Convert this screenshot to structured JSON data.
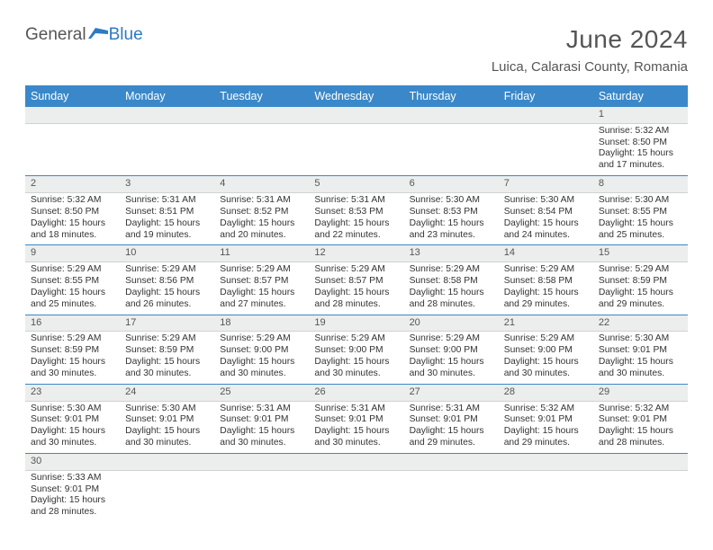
{
  "logo": {
    "text1": "General",
    "text2": "Blue"
  },
  "title": "June 2024",
  "location": "Luica, Calarasi County, Romania",
  "colors": {
    "header_bg": "#3a88c9",
    "header_fg": "#ffffff",
    "daynum_bg": "#eceded",
    "border": "#3a88c9",
    "logo_blue": "#2c7bc4"
  },
  "weekdays": [
    "Sunday",
    "Monday",
    "Tuesday",
    "Wednesday",
    "Thursday",
    "Friday",
    "Saturday"
  ],
  "weeks": [
    {
      "nums": [
        "",
        "",
        "",
        "",
        "",
        "",
        "1"
      ],
      "cells": [
        {},
        {},
        {},
        {},
        {},
        {},
        {
          "sunrise": "Sunrise: 5:32 AM",
          "sunset": "Sunset: 8:50 PM",
          "daylight1": "Daylight: 15 hours",
          "daylight2": "and 17 minutes."
        }
      ]
    },
    {
      "nums": [
        "2",
        "3",
        "4",
        "5",
        "6",
        "7",
        "8"
      ],
      "cells": [
        {
          "sunrise": "Sunrise: 5:32 AM",
          "sunset": "Sunset: 8:50 PM",
          "daylight1": "Daylight: 15 hours",
          "daylight2": "and 18 minutes."
        },
        {
          "sunrise": "Sunrise: 5:31 AM",
          "sunset": "Sunset: 8:51 PM",
          "daylight1": "Daylight: 15 hours",
          "daylight2": "and 19 minutes."
        },
        {
          "sunrise": "Sunrise: 5:31 AM",
          "sunset": "Sunset: 8:52 PM",
          "daylight1": "Daylight: 15 hours",
          "daylight2": "and 20 minutes."
        },
        {
          "sunrise": "Sunrise: 5:31 AM",
          "sunset": "Sunset: 8:53 PM",
          "daylight1": "Daylight: 15 hours",
          "daylight2": "and 22 minutes."
        },
        {
          "sunrise": "Sunrise: 5:30 AM",
          "sunset": "Sunset: 8:53 PM",
          "daylight1": "Daylight: 15 hours",
          "daylight2": "and 23 minutes."
        },
        {
          "sunrise": "Sunrise: 5:30 AM",
          "sunset": "Sunset: 8:54 PM",
          "daylight1": "Daylight: 15 hours",
          "daylight2": "and 24 minutes."
        },
        {
          "sunrise": "Sunrise: 5:30 AM",
          "sunset": "Sunset: 8:55 PM",
          "daylight1": "Daylight: 15 hours",
          "daylight2": "and 25 minutes."
        }
      ]
    },
    {
      "nums": [
        "9",
        "10",
        "11",
        "12",
        "13",
        "14",
        "15"
      ],
      "cells": [
        {
          "sunrise": "Sunrise: 5:29 AM",
          "sunset": "Sunset: 8:55 PM",
          "daylight1": "Daylight: 15 hours",
          "daylight2": "and 25 minutes."
        },
        {
          "sunrise": "Sunrise: 5:29 AM",
          "sunset": "Sunset: 8:56 PM",
          "daylight1": "Daylight: 15 hours",
          "daylight2": "and 26 minutes."
        },
        {
          "sunrise": "Sunrise: 5:29 AM",
          "sunset": "Sunset: 8:57 PM",
          "daylight1": "Daylight: 15 hours",
          "daylight2": "and 27 minutes."
        },
        {
          "sunrise": "Sunrise: 5:29 AM",
          "sunset": "Sunset: 8:57 PM",
          "daylight1": "Daylight: 15 hours",
          "daylight2": "and 28 minutes."
        },
        {
          "sunrise": "Sunrise: 5:29 AM",
          "sunset": "Sunset: 8:58 PM",
          "daylight1": "Daylight: 15 hours",
          "daylight2": "and 28 minutes."
        },
        {
          "sunrise": "Sunrise: 5:29 AM",
          "sunset": "Sunset: 8:58 PM",
          "daylight1": "Daylight: 15 hours",
          "daylight2": "and 29 minutes."
        },
        {
          "sunrise": "Sunrise: 5:29 AM",
          "sunset": "Sunset: 8:59 PM",
          "daylight1": "Daylight: 15 hours",
          "daylight2": "and 29 minutes."
        }
      ]
    },
    {
      "nums": [
        "16",
        "17",
        "18",
        "19",
        "20",
        "21",
        "22"
      ],
      "cells": [
        {
          "sunrise": "Sunrise: 5:29 AM",
          "sunset": "Sunset: 8:59 PM",
          "daylight1": "Daylight: 15 hours",
          "daylight2": "and 30 minutes."
        },
        {
          "sunrise": "Sunrise: 5:29 AM",
          "sunset": "Sunset: 8:59 PM",
          "daylight1": "Daylight: 15 hours",
          "daylight2": "and 30 minutes."
        },
        {
          "sunrise": "Sunrise: 5:29 AM",
          "sunset": "Sunset: 9:00 PM",
          "daylight1": "Daylight: 15 hours",
          "daylight2": "and 30 minutes."
        },
        {
          "sunrise": "Sunrise: 5:29 AM",
          "sunset": "Sunset: 9:00 PM",
          "daylight1": "Daylight: 15 hours",
          "daylight2": "and 30 minutes."
        },
        {
          "sunrise": "Sunrise: 5:29 AM",
          "sunset": "Sunset: 9:00 PM",
          "daylight1": "Daylight: 15 hours",
          "daylight2": "and 30 minutes."
        },
        {
          "sunrise": "Sunrise: 5:29 AM",
          "sunset": "Sunset: 9:00 PM",
          "daylight1": "Daylight: 15 hours",
          "daylight2": "and 30 minutes."
        },
        {
          "sunrise": "Sunrise: 5:30 AM",
          "sunset": "Sunset: 9:01 PM",
          "daylight1": "Daylight: 15 hours",
          "daylight2": "and 30 minutes."
        }
      ]
    },
    {
      "nums": [
        "23",
        "24",
        "25",
        "26",
        "27",
        "28",
        "29"
      ],
      "cells": [
        {
          "sunrise": "Sunrise: 5:30 AM",
          "sunset": "Sunset: 9:01 PM",
          "daylight1": "Daylight: 15 hours",
          "daylight2": "and 30 minutes."
        },
        {
          "sunrise": "Sunrise: 5:30 AM",
          "sunset": "Sunset: 9:01 PM",
          "daylight1": "Daylight: 15 hours",
          "daylight2": "and 30 minutes."
        },
        {
          "sunrise": "Sunrise: 5:31 AM",
          "sunset": "Sunset: 9:01 PM",
          "daylight1": "Daylight: 15 hours",
          "daylight2": "and 30 minutes."
        },
        {
          "sunrise": "Sunrise: 5:31 AM",
          "sunset": "Sunset: 9:01 PM",
          "daylight1": "Daylight: 15 hours",
          "daylight2": "and 30 minutes."
        },
        {
          "sunrise": "Sunrise: 5:31 AM",
          "sunset": "Sunset: 9:01 PM",
          "daylight1": "Daylight: 15 hours",
          "daylight2": "and 29 minutes."
        },
        {
          "sunrise": "Sunrise: 5:32 AM",
          "sunset": "Sunset: 9:01 PM",
          "daylight1": "Daylight: 15 hours",
          "daylight2": "and 29 minutes."
        },
        {
          "sunrise": "Sunrise: 5:32 AM",
          "sunset": "Sunset: 9:01 PM",
          "daylight1": "Daylight: 15 hours",
          "daylight2": "and 28 minutes."
        }
      ]
    },
    {
      "nums": [
        "30",
        "",
        "",
        "",
        "",
        "",
        ""
      ],
      "cells": [
        {
          "sunrise": "Sunrise: 5:33 AM",
          "sunset": "Sunset: 9:01 PM",
          "daylight1": "Daylight: 15 hours",
          "daylight2": "and 28 minutes."
        },
        {},
        {},
        {},
        {},
        {},
        {}
      ]
    }
  ]
}
